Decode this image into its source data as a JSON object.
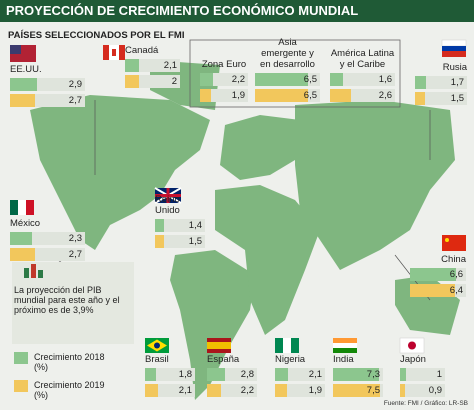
{
  "header": {
    "title": "PROYECCIÓN DE CRECIMIENTO ECONÓMICO MUNDIAL",
    "subtitle": "PAÍSES SELECCIONADOS POR EL FMI"
  },
  "countries": [
    {
      "name": "EE.UU.",
      "values": [
        2.9,
        2.7
      ],
      "value_labels": [
        "2,9",
        "2,7"
      ]
    },
    {
      "name": "Canadá",
      "values": [
        2.1,
        2
      ],
      "value_labels": [
        "2,1",
        "2"
      ]
    },
    {
      "name": "Zona Euro",
      "values": [
        2.2,
        1.9
      ],
      "value_labels": [
        "2,2",
        "1,9"
      ]
    },
    {
      "name": "Asia emergente y en desarrollo",
      "values": [
        6.5,
        6.5
      ],
      "value_labels": [
        "6,5",
        "6,5"
      ]
    },
    {
      "name": "América Latina y el Caribe",
      "values": [
        1.6,
        2.6
      ],
      "value_labels": [
        "1,6",
        "2,6"
      ]
    },
    {
      "name": "Rusia",
      "values": [
        1.7,
        1.5
      ],
      "value_labels": [
        "1,7",
        "1,5"
      ]
    },
    {
      "name": "Reino Unido",
      "values": [
        1.4,
        1.5
      ],
      "value_labels": [
        "1,4",
        "1,5"
      ]
    },
    {
      "name": "México",
      "values": [
        2.3,
        2.7
      ],
      "value_labels": [
        "2,3",
        "2,7"
      ]
    },
    {
      "name": "China",
      "values": [
        6.6,
        6.4
      ],
      "value_labels": [
        "6,6",
        "6,4"
      ]
    },
    {
      "name": "Brasil",
      "values": [
        1.8,
        2.1
      ],
      "value_labels": [
        "1,8",
        "2,1"
      ]
    },
    {
      "name": "España",
      "values": [
        2.8,
        2.2
      ],
      "value_labels": [
        "2,8",
        "2,2"
      ]
    },
    {
      "name": "Nigeria",
      "values": [
        2.1,
        1.9
      ],
      "value_labels": [
        "2,1",
        "1,9"
      ]
    },
    {
      "name": "India",
      "values": [
        7.3,
        7.5
      ],
      "value_labels": [
        "7,3",
        "7,5"
      ]
    },
    {
      "name": "Japón",
      "values": [
        1,
        0.9
      ],
      "value_labels": [
        "1",
        "0,9"
      ]
    }
  ],
  "legend": {
    "note": "La proyección del PIB mundial para este año y el próximo es de 3,9%",
    "items": [
      "Crecimiento 2018 (%)",
      "Crecimiento 2019 (%)"
    ]
  },
  "source": "Fuente: FMI / Gráfico: LR-SB"
}
